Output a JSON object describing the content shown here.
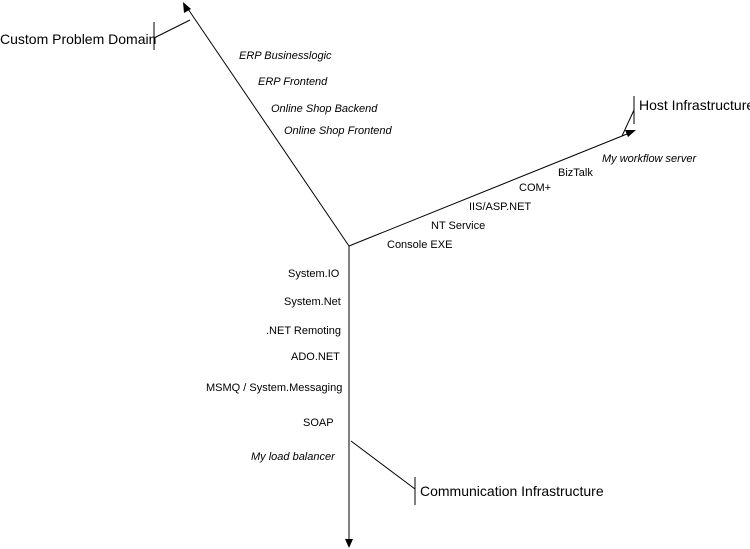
{
  "axes": {
    "problem_domain": {
      "title": "Custom Problem Domain",
      "items": [
        "ERP Businesslogic",
        "ERP Frontend",
        "Online Shop Backend",
        "Online Shop Frontend"
      ]
    },
    "host": {
      "title": "Host Infrastructure",
      "items": [
        "My workflow server",
        "BizTalk",
        "COM+",
        "IIS/ASP.NET",
        "NT Service",
        "Console EXE"
      ]
    },
    "communication": {
      "title": "Communication Infrastructure",
      "items": [
        "System.IO",
        "System.Net",
        ".NET Remoting",
        "ADO.NET",
        "MSMQ / System.Messaging",
        "SOAP",
        "My load balancer"
      ]
    }
  },
  "colors": {
    "line": "#000000",
    "background": "#ffffff"
  }
}
